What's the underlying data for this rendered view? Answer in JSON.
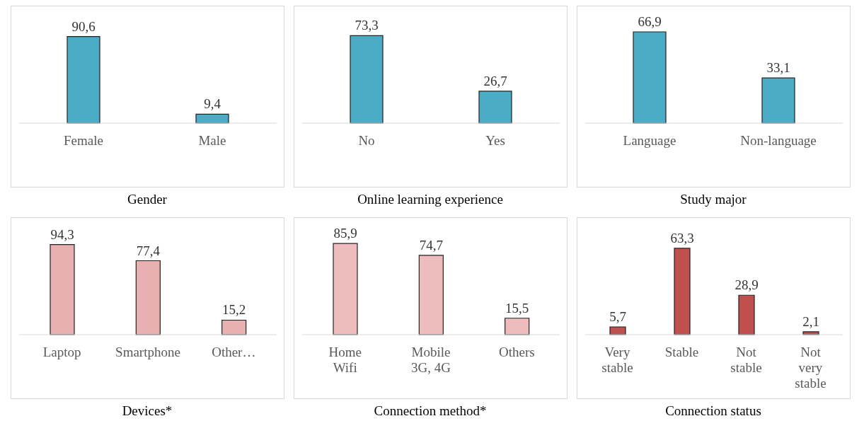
{
  "chart_data": [
    {
      "type": "bar",
      "title": "Gender",
      "categories": [
        "Female",
        "Male"
      ],
      "values": [
        90.6,
        9.4
      ],
      "value_labels": [
        "90,6",
        "9,4"
      ],
      "color": "#4bacc6",
      "tick_labels": "x"
    },
    {
      "type": "bar",
      "title": "Online learning experience",
      "categories": [
        "No",
        "Yes"
      ],
      "values": [
        73.3,
        26.7
      ],
      "value_labels": [
        "73,3",
        "26,7"
      ],
      "color": "#4bacc6",
      "tick_labels": "x"
    },
    {
      "type": "bar",
      "title": "Study major",
      "categories": [
        "Language",
        "Non-language"
      ],
      "values": [
        66.9,
        33.1
      ],
      "value_labels": [
        "66,9",
        "33,1"
      ],
      "color": "#4bacc6",
      "tick_labels": "x"
    },
    {
      "type": "bar",
      "title": "Devices*",
      "categories": [
        "Laptop",
        "Smartphone",
        "Other…"
      ],
      "values": [
        94.3,
        77.4,
        15.2
      ],
      "value_labels": [
        "94,3",
        "77,4",
        "15,2"
      ],
      "color": "#e8b0b0",
      "tick_labels": "x"
    },
    {
      "type": "bar",
      "title": "Connection method*",
      "categories": [
        "Home Wifi",
        "Mobile 3G, 4G",
        "Others"
      ],
      "values": [
        85.9,
        74.7,
        15.5
      ],
      "value_labels": [
        "85,9",
        "74,7",
        "15,5"
      ],
      "color": "#eebcbc",
      "tick_labels": "x"
    },
    {
      "type": "bar",
      "title": "Connection status",
      "categories": [
        "Very stable",
        "Stable",
        "Not stable",
        "Not very stable"
      ],
      "values": [
        5.7,
        63.3,
        28.9,
        2.1
      ],
      "value_labels": [
        "5,7",
        "63,3",
        "28,9",
        "2,1"
      ],
      "color": "#c0504d",
      "tick_labels": "x"
    }
  ]
}
